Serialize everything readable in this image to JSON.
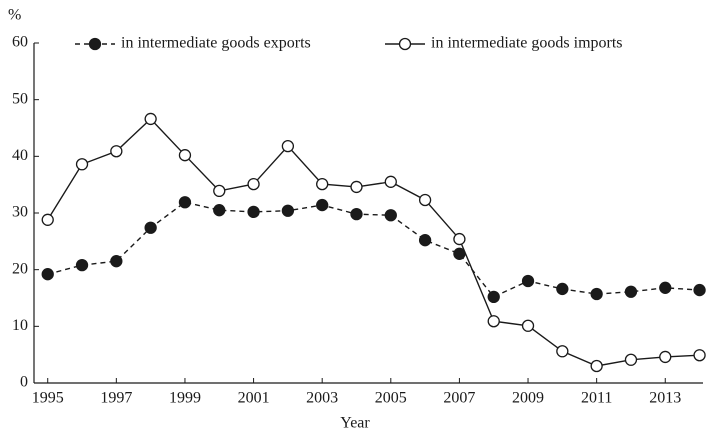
{
  "chart_data": {
    "type": "line",
    "y_label": "%",
    "x_label": "Year",
    "x": [
      1995,
      1996,
      1997,
      1998,
      1999,
      2000,
      2001,
      2002,
      2003,
      2004,
      2005,
      2006,
      2007,
      2008,
      2009,
      2010,
      2011,
      2012,
      2013,
      2014
    ],
    "series": [
      {
        "name": "in intermediate goods exports",
        "color": "#1a1a1a",
        "dashed": true,
        "marker": "filled",
        "values": [
          19.2,
          20.8,
          21.5,
          27.4,
          31.9,
          30.5,
          30.2,
          30.4,
          31.4,
          29.8,
          29.6,
          25.2,
          22.8,
          15.2,
          18.0,
          16.6,
          15.7,
          16.1,
          16.8,
          16.4
        ]
      },
      {
        "name": "in intermediate goods imports",
        "color": "#1a1a1a",
        "dashed": false,
        "marker": "open",
        "values": [
          28.8,
          38.6,
          40.9,
          46.6,
          40.2,
          33.9,
          35.1,
          41.8,
          35.1,
          34.6,
          35.5,
          32.3,
          25.4,
          10.9,
          10.1,
          5.6,
          3.0,
          4.1,
          4.6,
          4.9
        ]
      }
    ],
    "xlim": [
      1994.6,
      2014.1
    ],
    "xticks": [
      1995,
      1997,
      1999,
      2001,
      2003,
      2005,
      2007,
      2009,
      2011,
      2013
    ],
    "ylim": [
      0,
      60
    ],
    "yticks": [
      0,
      10,
      20,
      30,
      40,
      50,
      60
    ],
    "grid": false,
    "legend": "top"
  }
}
